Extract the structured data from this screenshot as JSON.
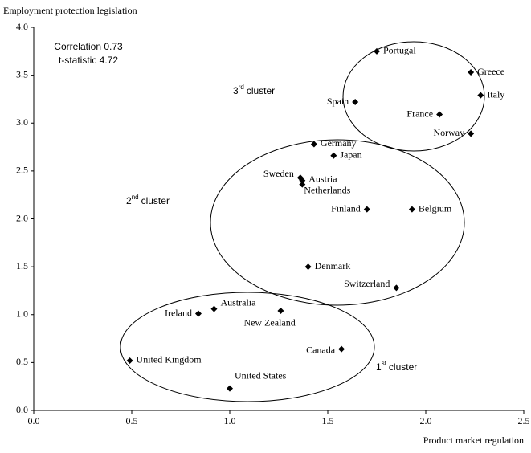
{
  "chart_data": {
    "type": "scatter",
    "y_label": "Employment protection legislation",
    "x_label": "Product market regulation",
    "annotations": [
      "Correlation 0.73",
      "t-statistic 4.72"
    ],
    "cluster_labels": [
      {
        "num": "3",
        "sup": "rd",
        "text": "cluster"
      },
      {
        "num": "2",
        "sup": "nd",
        "text": "cluster"
      },
      {
        "num": "1",
        "sup": "st",
        "text": "cluster"
      }
    ],
    "color": "#000000",
    "labels": [
      "Portugal",
      "Greece",
      "Italy",
      "Spain",
      "France",
      "Norway",
      "Germany",
      "Japan",
      "Sweden",
      "Austria",
      "Netherlands",
      "Finland",
      "Belgium",
      "Denmark",
      "Switzerland",
      "Ireland",
      "Australia",
      "New Zealand",
      "Canada",
      "United Kingdom",
      "United States"
    ],
    "x": [
      1.75,
      2.23,
      2.28,
      1.64,
      2.07,
      2.23,
      1.43,
      1.53,
      1.36,
      1.37,
      1.37,
      1.7,
      1.93,
      1.4,
      1.85,
      0.84,
      0.92,
      1.26,
      1.57,
      0.49,
      1.0
    ],
    "y": [
      3.75,
      3.53,
      3.29,
      3.22,
      3.09,
      2.89,
      2.78,
      2.66,
      2.43,
      2.4,
      2.36,
      2.1,
      2.1,
      1.5,
      1.28,
      1.01,
      1.06,
      1.04,
      0.64,
      0.52,
      0.23
    ],
    "xlim": [
      0,
      2.5
    ],
    "ylim": [
      0,
      4
    ],
    "xticks": [
      {
        "value": 0,
        "label": "0.0"
      },
      0.5,
      {
        "value": 1,
        "label": "1.0"
      },
      1.5,
      {
        "value": 2,
        "label": "2.0"
      },
      2.5
    ],
    "yticks": [
      {
        "value": 0,
        "label": "0.0"
      },
      0.5,
      {
        "value": 1,
        "label": "1.0"
      },
      1.5,
      {
        "value": 2,
        "label": "2.0"
      },
      2.5,
      {
        "value": 3,
        "label": "3.0"
      },
      3.5,
      {
        "value": 4,
        "label": "4.0"
      }
    ],
    "grid": false
  }
}
